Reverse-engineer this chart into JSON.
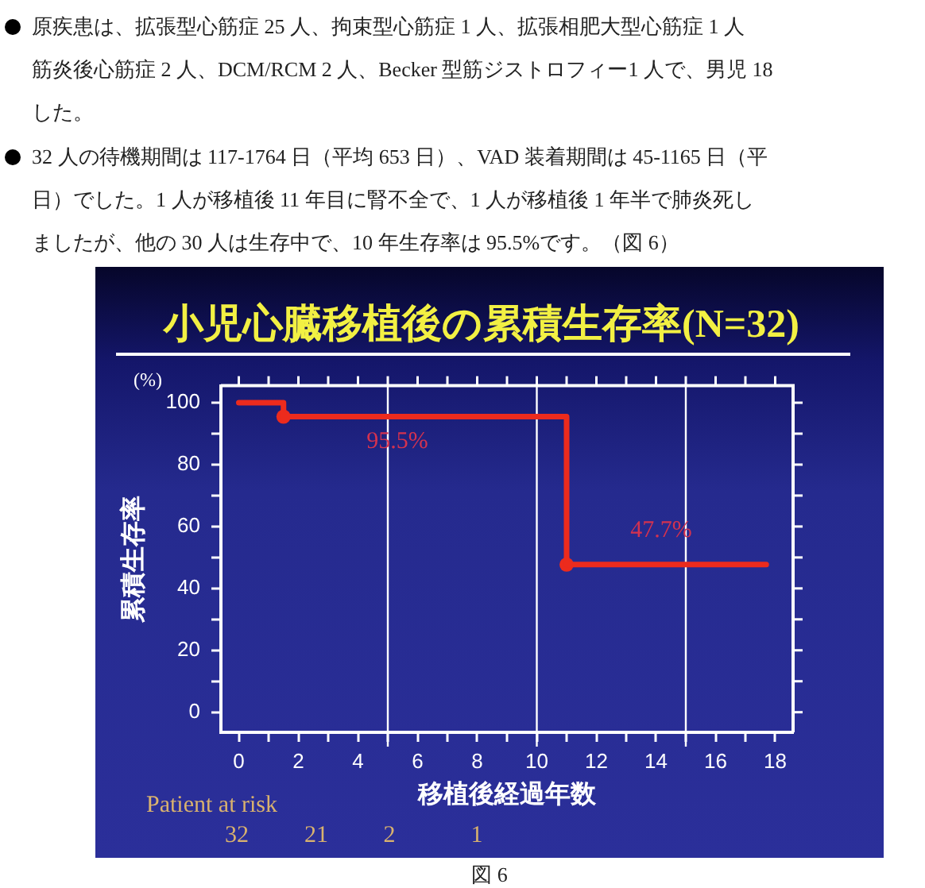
{
  "chart_data": {
    "type": "step",
    "title": "小児心臓移植後の累積生存率(N=32)",
    "xlabel": "移植後経過年数",
    "ylabel": "累積生存率",
    "series": [
      {
        "x": [
          0,
          1.5,
          11,
          17.7
        ],
        "color": "#ec2b1d",
        "values": [
          100,
          95.5,
          47.7,
          47.7
        ],
        "marker": "none"
      },
      {
        "type": "scatter",
        "x": [
          1.5,
          11
        ],
        "color": "#ec2b1d",
        "values": [
          95.5,
          47.7
        ],
        "marker": "circle"
      }
    ],
    "xlim": [
      -0.6,
      18.6
    ],
    "xticks": [
      0,
      {
        "value": 1,
        "label": null
      },
      2,
      {
        "value": 3,
        "label": null
      },
      4,
      {
        "value": 5,
        "label": null
      },
      6,
      {
        "value": 7,
        "label": null
      },
      8,
      {
        "value": 9,
        "label": null
      },
      10,
      {
        "value": 11,
        "label": null
      },
      12,
      {
        "value": 13,
        "label": null
      },
      14,
      {
        "value": 15,
        "label": null
      },
      16,
      {
        "value": 17,
        "label": null
      },
      18
    ],
    "ylim": [
      -6.5,
      105.5
    ],
    "yticks": [
      0,
      {
        "value": 10,
        "label": null
      },
      20,
      {
        "value": 30,
        "label": null
      },
      40,
      {
        "value": 50,
        "label": null
      },
      60,
      {
        "value": 70,
        "label": null
      },
      80,
      {
        "value": 90,
        "label": null
      },
      100
    ],
    "grid": false,
    "legend": false,
    "ref_lines": [
      {
        "axis": "x",
        "value": 5,
        "color": "#ffffff"
      },
      {
        "axis": "x",
        "value": 10,
        "color": "#ffffff"
      },
      {
        "axis": "x",
        "value": 15,
        "color": "#ffffff"
      }
    ],
    "annotations": [
      "原疾患は、拡張型心筋症 25 人、拘束型心筋症 1 人、拡張相肥大型心筋症 1 人",
      "筋炎後心筋症 2 人、DCM/RCM 2 人、Becker 型筋ジストロフィー1 人で、男児 18",
      "した。",
      "32 人の待機期間は 117-1764 日（平均 653 日）、VAD 装着期間は 45-1165 日（平",
      "日）でした。1 人が移植後 11 年目に腎不全で、1 人が移植後 1 年半で肺炎死し",
      "ましたが、他の 30 人は生存中で、10 年生存率は 95.5%です。（図 6）",
      "(%)",
      "95.5%",
      "47.7%",
      "Patient at risk",
      "32",
      "21",
      "2",
      "1",
      "図 6"
    ]
  }
}
